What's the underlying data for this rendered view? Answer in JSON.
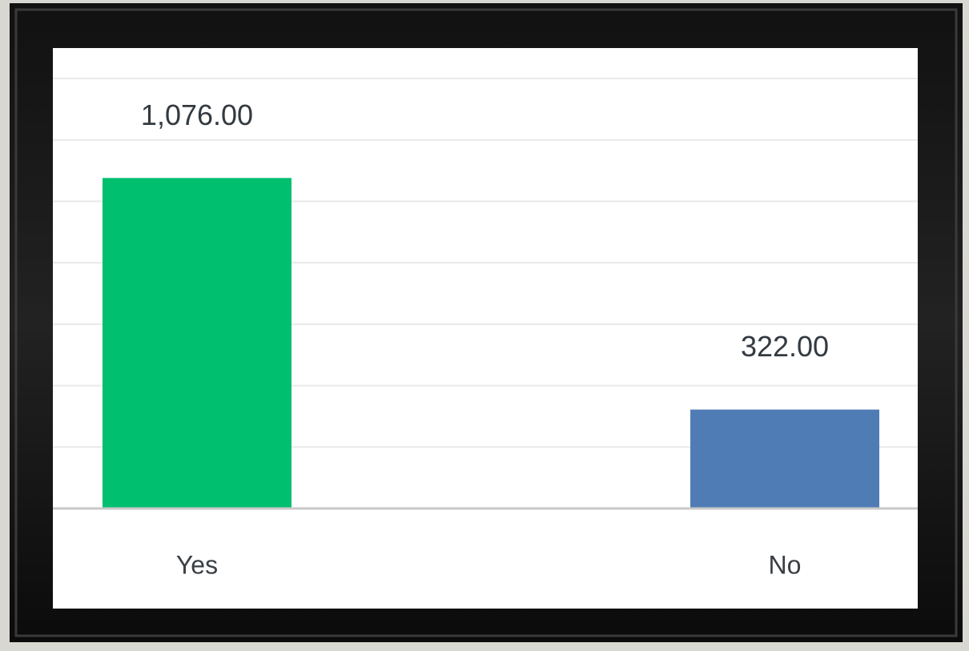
{
  "chart_data": {
    "type": "bar",
    "categories": [
      "Yes",
      "No"
    ],
    "values": [
      1076,
      322
    ],
    "value_labels": [
      "1,076.00",
      "322.00"
    ],
    "colors": [
      "#00bf6f",
      "#4f7cb4"
    ],
    "ylim": [
      0,
      1400
    ],
    "yticks": [
      0,
      200,
      400,
      600,
      800,
      1000,
      1200,
      1400
    ],
    "grid": true
  }
}
